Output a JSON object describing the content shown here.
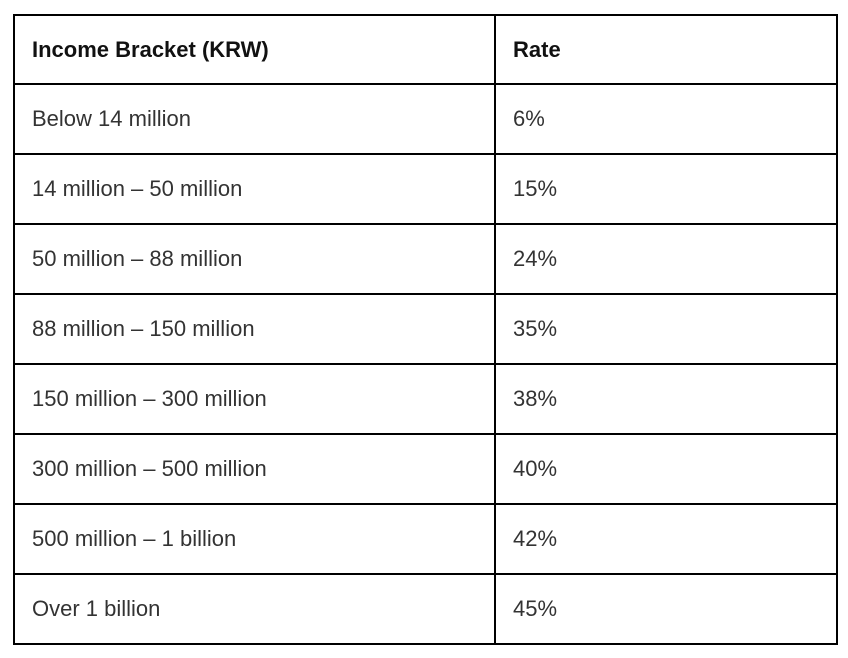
{
  "table": {
    "columns": [
      "Income Bracket (KRW)",
      "Rate"
    ],
    "rows": [
      [
        "Below 14 million",
        "6%"
      ],
      [
        "14 million – 50 million",
        "15%"
      ],
      [
        "50 million – 88 million",
        "24%"
      ],
      [
        "88 million – 150 million",
        "35%"
      ],
      [
        "150 million – 300 million",
        "38%"
      ],
      [
        "300 million – 500 million",
        "40%"
      ],
      [
        "500 million – 1 billion",
        "42%"
      ],
      [
        "Over 1 billion",
        "45%"
      ]
    ]
  },
  "chart_data": {
    "type": "table",
    "title": "",
    "columns": [
      "Income Bracket (KRW)",
      "Rate"
    ],
    "categories": [
      "Below 14 million",
      "14 million – 50 million",
      "50 million – 88 million",
      "88 million – 150 million",
      "150 million – 300 million",
      "300 million – 500 million",
      "500 million – 1 billion",
      "Over 1 billion"
    ],
    "values": [
      6,
      15,
      24,
      35,
      38,
      40,
      42,
      45
    ],
    "value_unit": "%"
  },
  "colors": {
    "border": "#000000",
    "header_text": "#111111",
    "body_text": "#333333",
    "background": "#ffffff"
  }
}
